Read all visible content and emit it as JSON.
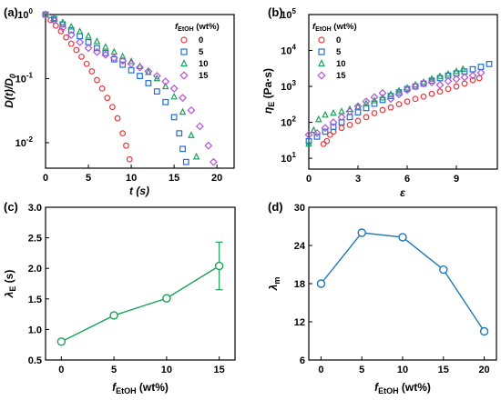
{
  "chart_data": [
    {
      "panel": "(a)",
      "type": "scatter",
      "xlabel": "t (s)",
      "ylabel": "D(t)/D0",
      "xlim": [
        0,
        22
      ],
      "ylim": [
        0.004,
        1
      ],
      "yscale": "log",
      "xticks": [
        "0",
        "5",
        "10",
        "15",
        "20"
      ],
      "yticks": [
        "10^-2",
        "10^-1",
        "10^0"
      ],
      "legend": {
        "title": "fEtOH (wt%)",
        "placement": "top-right"
      },
      "series": [
        {
          "name": "0",
          "marker": "circle",
          "color": "#e8383b",
          "x": [
            0,
            0.6,
            1.2,
            1.8,
            2.4,
            3.0,
            3.6,
            4.2,
            4.8,
            5.4,
            6.0,
            6.6,
            7.2,
            7.8,
            8.4,
            9.0,
            9.4,
            9.8
          ],
          "y": [
            1.0,
            0.82,
            0.67,
            0.55,
            0.44,
            0.35,
            0.28,
            0.22,
            0.17,
            0.13,
            0.095,
            0.07,
            0.05,
            0.036,
            0.024,
            0.014,
            0.009,
            0.0055
          ]
        },
        {
          "name": "5",
          "marker": "square",
          "color": "#1f6fd8",
          "x": [
            0,
            1,
            2,
            3,
            4,
            5,
            6,
            7,
            8,
            9,
            10,
            11,
            12,
            13,
            14,
            15,
            15.6,
            16.0,
            16.4
          ],
          "y": [
            1.0,
            0.85,
            0.7,
            0.57,
            0.46,
            0.37,
            0.3,
            0.25,
            0.2,
            0.165,
            0.135,
            0.11,
            0.085,
            0.063,
            0.043,
            0.025,
            0.014,
            0.008,
            0.005
          ]
        },
        {
          "name": "10",
          "marker": "triangle",
          "color": "#1aa35a",
          "x": [
            0,
            1,
            2,
            3,
            4,
            5,
            6,
            7,
            8,
            9,
            10,
            11,
            12,
            13,
            14,
            15,
            16,
            17,
            17.6
          ],
          "y": [
            1.0,
            0.87,
            0.75,
            0.64,
            0.54,
            0.46,
            0.38,
            0.31,
            0.26,
            0.22,
            0.185,
            0.155,
            0.125,
            0.1,
            0.075,
            0.052,
            0.03,
            0.013,
            0.006
          ]
        },
        {
          "name": "15",
          "marker": "diamond",
          "color": "#b452d6",
          "x": [
            0,
            1,
            2,
            3,
            4,
            5,
            6,
            7,
            8,
            9,
            10,
            11,
            12,
            13,
            14,
            15,
            16,
            17,
            18,
            19,
            19.6
          ],
          "y": [
            1.0,
            0.8,
            0.62,
            0.48,
            0.37,
            0.3,
            0.26,
            0.235,
            0.21,
            0.19,
            0.17,
            0.15,
            0.13,
            0.11,
            0.09,
            0.07,
            0.05,
            0.032,
            0.018,
            0.009,
            0.005
          ]
        }
      ]
    },
    {
      "panel": "(b)",
      "type": "scatter",
      "xlabel": "ε",
      "ylabel": "ηE (Pa·s)",
      "xlim": [
        0,
        11.5
      ],
      "ylim": [
        5,
        100000
      ],
      "yscale": "log",
      "xticks": [
        "0",
        "3",
        "6",
        "9"
      ],
      "yticks": [
        "10^1",
        "10^2",
        "10^3",
        "10^4",
        "10^5"
      ],
      "legend": {
        "title": "fEtOH (wt%)",
        "placement": "top-left"
      },
      "series": [
        {
          "name": "0",
          "marker": "circle",
          "color": "#e8383b",
          "x": [
            0.9,
            1.1,
            1.3,
            1.5,
            2,
            2.5,
            3,
            3.5,
            4,
            4.5,
            5,
            5.5,
            6,
            6.5,
            7,
            7.5,
            8,
            8.5,
            9,
            9.5,
            10,
            10.4
          ],
          "y": [
            25,
            30,
            45,
            55,
            70,
            85,
            110,
            140,
            180,
            220,
            260,
            320,
            380,
            450,
            520,
            620,
            720,
            850,
            1000,
            1200,
            1500,
            1700
          ]
        },
        {
          "name": "5",
          "marker": "square",
          "color": "#1f6fd8",
          "x": [
            0,
            0.5,
            1,
            1.5,
            2,
            2.5,
            3,
            3.5,
            4,
            4.5,
            5,
            5.5,
            6,
            6.5,
            7,
            7.5,
            8,
            8.5,
            9,
            9.5,
            10,
            10.5,
            11
          ],
          "y": [
            30,
            40,
            55,
            75,
            100,
            140,
            190,
            250,
            330,
            420,
            540,
            680,
            850,
            1000,
            1200,
            1450,
            1700,
            2000,
            2300,
            2600,
            3000,
            3500,
            4200
          ]
        },
        {
          "name": "10",
          "marker": "triangle",
          "color": "#1aa35a",
          "x": [
            0,
            0.3,
            0.6,
            1,
            1.5,
            2,
            2.5,
            3,
            3.5,
            4,
            4.5,
            5,
            5.5,
            6,
            6.5,
            7,
            7.5,
            8,
            8.5,
            9,
            9.4
          ],
          "y": [
            25,
            60,
            120,
            160,
            180,
            200,
            230,
            270,
            330,
            400,
            480,
            600,
            750,
            900,
            1100,
            1300,
            1600,
            1900,
            2200,
            2600,
            3000
          ]
        },
        {
          "name": "15",
          "marker": "diamond",
          "color": "#b452d6",
          "x": [
            0,
            0.5,
            1,
            1.5,
            2,
            2.5,
            3,
            3.5,
            4,
            4.5,
            5,
            5.5,
            6,
            6.5,
            7,
            7.5,
            8,
            8.5,
            9,
            9.5,
            10,
            10.5
          ],
          "y": [
            45,
            50,
            70,
            100,
            140,
            200,
            280,
            380,
            500,
            650,
            450,
            600,
            800,
            1000,
            1200,
            1300,
            1100,
            1400,
            1600,
            1800,
            2000,
            2400
          ]
        }
      ]
    },
    {
      "panel": "(c)",
      "type": "line",
      "xlabel": "fEtOH (wt%)",
      "ylabel": "λE (s)",
      "xlim": [
        -1.5,
        16.5
      ],
      "ylim": [
        0.5,
        3.0
      ],
      "xticks": [
        "0",
        "5",
        "10",
        "15"
      ],
      "yticks": [
        "0.5",
        "1.0",
        "1.5",
        "2.0",
        "2.5",
        "3.0"
      ],
      "color": "#1aa35a",
      "x": [
        0,
        5,
        10,
        15
      ],
      "y": [
        0.8,
        1.23,
        1.51,
        2.04
      ],
      "err": [
        0.04,
        0.03,
        0.04,
        0.39
      ]
    },
    {
      "panel": "(d)",
      "type": "line",
      "xlabel": "fEtOH (wt%)",
      "ylabel": "λm",
      "xlim": [
        -1.5,
        21.5
      ],
      "ylim": [
        6,
        30
      ],
      "xticks": [
        "0",
        "5",
        "10",
        "15",
        "20"
      ],
      "yticks": [
        "6",
        "12",
        "18",
        "24",
        "30"
      ],
      "color": "#1f78b4",
      "x": [
        0,
        5,
        10,
        15,
        20
      ],
      "y": [
        18.0,
        26.0,
        25.3,
        20.2,
        10.5
      ]
    }
  ]
}
